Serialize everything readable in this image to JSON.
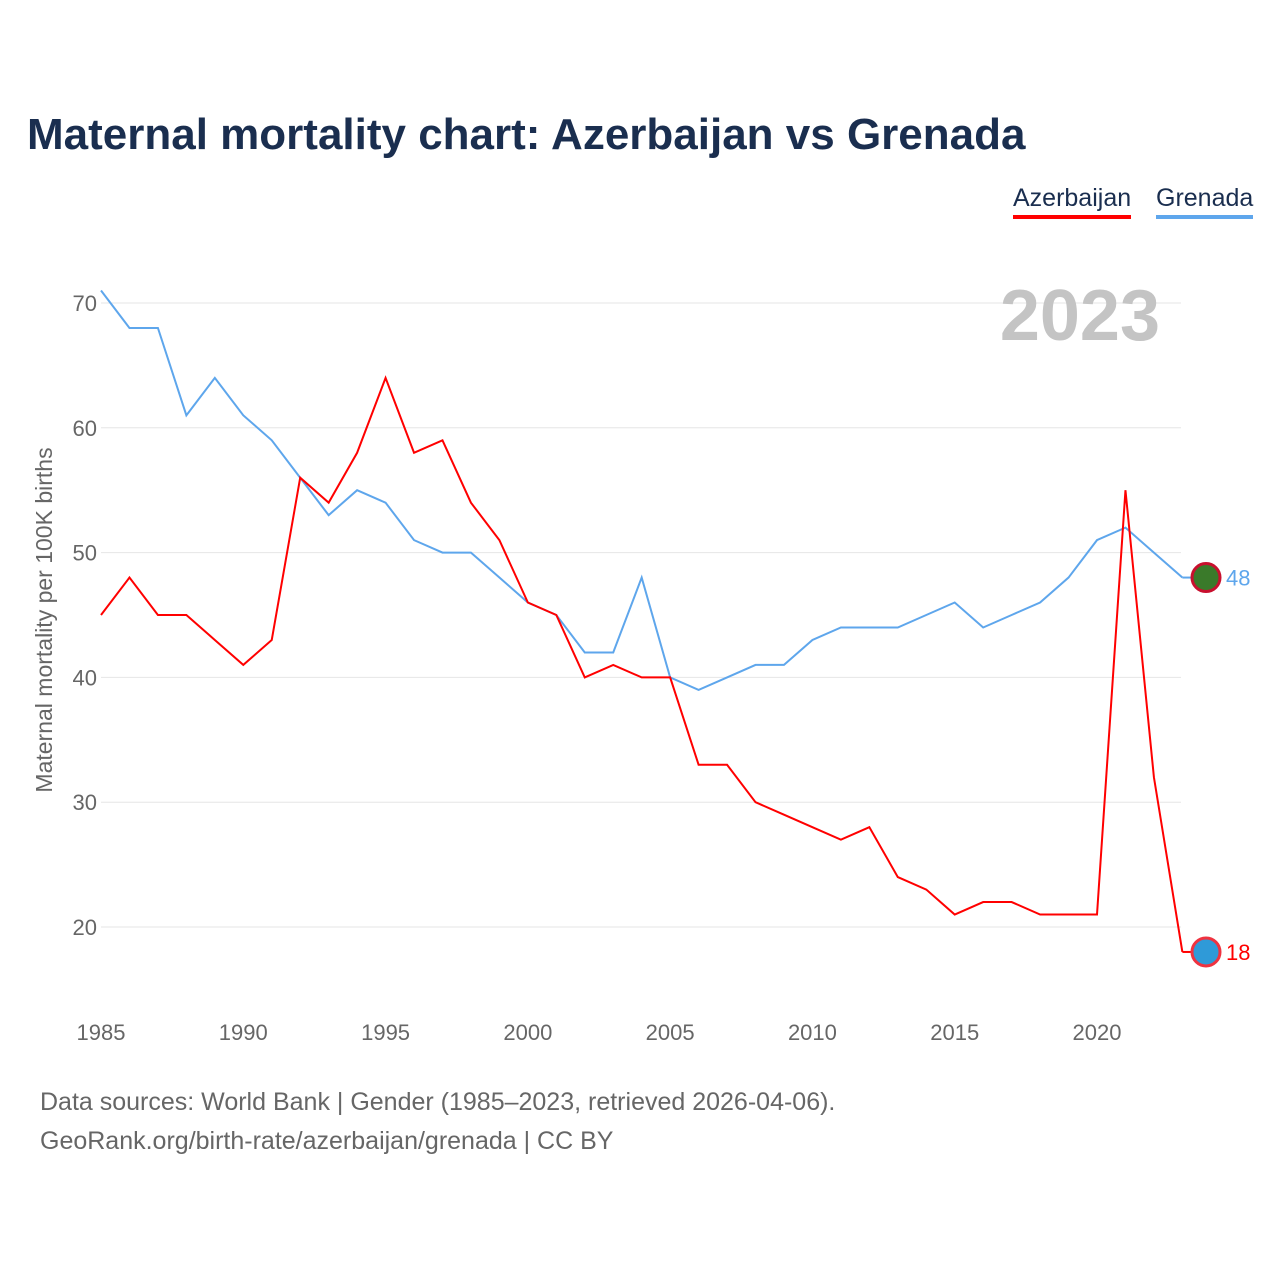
{
  "chart_data": {
    "type": "line",
    "title": "Maternal mortality chart: Azerbaijan vs Grenada",
    "ylabel": "Maternal mortality per 100K births",
    "xlabel": "",
    "year_label": "2023",
    "x": [
      1985,
      1986,
      1987,
      1988,
      1989,
      1990,
      1991,
      1992,
      1993,
      1994,
      1995,
      1996,
      1997,
      1998,
      1999,
      2000,
      2001,
      2002,
      2003,
      2004,
      2005,
      2006,
      2007,
      2008,
      2009,
      2010,
      2011,
      2012,
      2013,
      2014,
      2015,
      2016,
      2017,
      2018,
      2019,
      2020,
      2021,
      2022,
      2023
    ],
    "series": [
      {
        "name": "Azerbaijan",
        "color": "#ff0000",
        "end_label": "18",
        "values": [
          45,
          48,
          45,
          45,
          43,
          41,
          43,
          56,
          54,
          58,
          64,
          58,
          59,
          54,
          51,
          46,
          45,
          40,
          41,
          40,
          40,
          33,
          33,
          30,
          29,
          28,
          27,
          28,
          24,
          23,
          21,
          22,
          22,
          21,
          21,
          21,
          55,
          32,
          18
        ]
      },
      {
        "name": "Grenada",
        "color": "#5ea6ec",
        "end_label": "48",
        "values": [
          71,
          68,
          68,
          61,
          64,
          61,
          59,
          56,
          53,
          55,
          54,
          51,
          50,
          50,
          48,
          46,
          45,
          42,
          42,
          48,
          40,
          39,
          40,
          41,
          41,
          43,
          44,
          44,
          44,
          45,
          46,
          44,
          45,
          46,
          48,
          51,
          52,
          50,
          48
        ]
      }
    ],
    "xticks": [
      "1985",
      "1990",
      "1995",
      "2000",
      "2005",
      "2010",
      "2015",
      "2020"
    ],
    "yticks": [
      "20",
      "30",
      "40",
      "50",
      "60",
      "70"
    ],
    "xlim": [
      1985,
      2023
    ],
    "ylim": [
      15,
      72
    ],
    "grid": true,
    "legend": "top-right"
  },
  "footer": {
    "line1": "Data sources: World Bank | Gender (1985–2023, retrieved 2026-04-06).",
    "line2": "GeoRank.org/birth-rate/azerbaijan/grenada | CC BY"
  }
}
